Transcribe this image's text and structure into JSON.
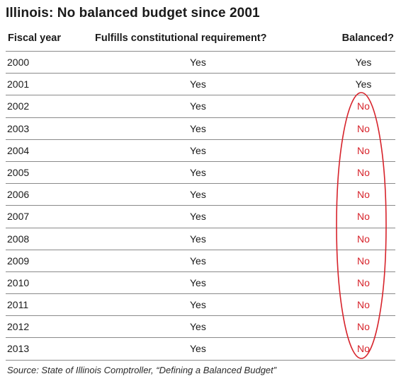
{
  "title": "Illinois: No balanced budget since 2001",
  "columns": {
    "fiscal_year": "Fiscal year",
    "requirement": "Fulfills constitutional requirement?",
    "balanced": "Balanced?"
  },
  "rows": [
    {
      "year": "2000",
      "requirement": "Yes",
      "balanced": "Yes"
    },
    {
      "year": "2001",
      "requirement": "Yes",
      "balanced": "Yes"
    },
    {
      "year": "2002",
      "requirement": "Yes",
      "balanced": "No"
    },
    {
      "year": "2003",
      "requirement": "Yes",
      "balanced": "No"
    },
    {
      "year": "2004",
      "requirement": "Yes",
      "balanced": "No"
    },
    {
      "year": "2005",
      "requirement": "Yes",
      "balanced": "No"
    },
    {
      "year": "2006",
      "requirement": "Yes",
      "balanced": "No"
    },
    {
      "year": "2007",
      "requirement": "Yes",
      "balanced": "No"
    },
    {
      "year": "2008",
      "requirement": "Yes",
      "balanced": "No"
    },
    {
      "year": "2009",
      "requirement": "Yes",
      "balanced": "No"
    },
    {
      "year": "2010",
      "requirement": "Yes",
      "balanced": "No"
    },
    {
      "year": "2011",
      "requirement": "Yes",
      "balanced": "No"
    },
    {
      "year": "2012",
      "requirement": "Yes",
      "balanced": "No"
    },
    {
      "year": "2013",
      "requirement": "Yes",
      "balanced": "No"
    }
  ],
  "source": "Source: State of Illinois Comptroller, “Defining a Balanced Budget”",
  "colors": {
    "no_highlight": "#d7232b",
    "text": "#1a1a1a",
    "rule": "#8a8a8a"
  }
}
